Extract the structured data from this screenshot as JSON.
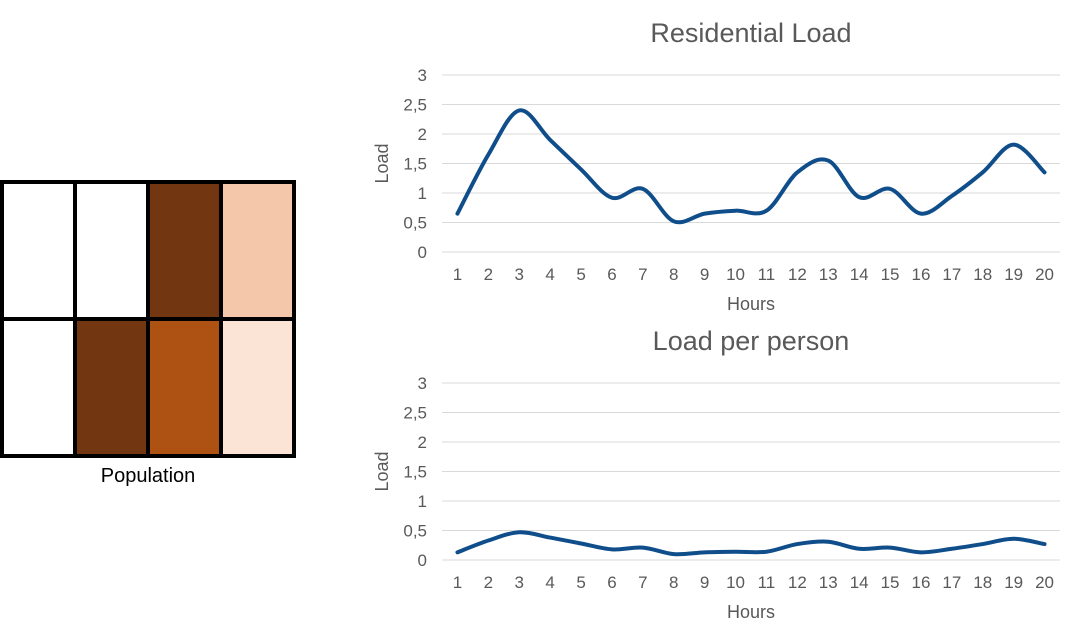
{
  "population": {
    "label": "Population",
    "cells": [
      [
        "#ffffff",
        "#ffffff",
        "#723710",
        "#f4c7aa"
      ],
      [
        "#ffffff",
        "#723710",
        "#ae5214",
        "#fbe4d5"
      ]
    ],
    "border_color": "#000000"
  },
  "chart_data": [
    {
      "type": "line",
      "title": "Residential Load",
      "xlabel": "Hours",
      "ylabel": "Load",
      "ylim": [
        0,
        3
      ],
      "yticks": [
        "0",
        "0,5",
        "1",
        "1,5",
        "2",
        "2,5",
        "3"
      ],
      "categories": [
        "1",
        "2",
        "3",
        "4",
        "5",
        "6",
        "7",
        "8",
        "9",
        "10",
        "11",
        "12",
        "13",
        "14",
        "15",
        "16",
        "17",
        "18",
        "19",
        "20"
      ],
      "values": [
        0.65,
        1.65,
        2.4,
        1.9,
        1.4,
        0.92,
        1.07,
        0.52,
        0.65,
        0.7,
        0.7,
        1.35,
        1.55,
        0.93,
        1.07,
        0.65,
        0.95,
        1.35,
        1.82,
        1.35
      ],
      "grid": true,
      "color": "#0f4e8a"
    },
    {
      "type": "line",
      "title": "Load per person",
      "xlabel": "Hours",
      "ylabel": "Load",
      "ylim": [
        0,
        3
      ],
      "yticks": [
        "0",
        "0,5",
        "1",
        "1,5",
        "2",
        "2,5",
        "3"
      ],
      "categories": [
        "1",
        "2",
        "3",
        "4",
        "5",
        "6",
        "7",
        "8",
        "9",
        "10",
        "11",
        "12",
        "13",
        "14",
        "15",
        "16",
        "17",
        "18",
        "19",
        "20"
      ],
      "values": [
        0.13,
        0.33,
        0.47,
        0.38,
        0.28,
        0.18,
        0.21,
        0.1,
        0.13,
        0.14,
        0.14,
        0.27,
        0.31,
        0.19,
        0.21,
        0.13,
        0.19,
        0.27,
        0.36,
        0.27
      ],
      "grid": true,
      "color": "#0f4e8a"
    }
  ]
}
